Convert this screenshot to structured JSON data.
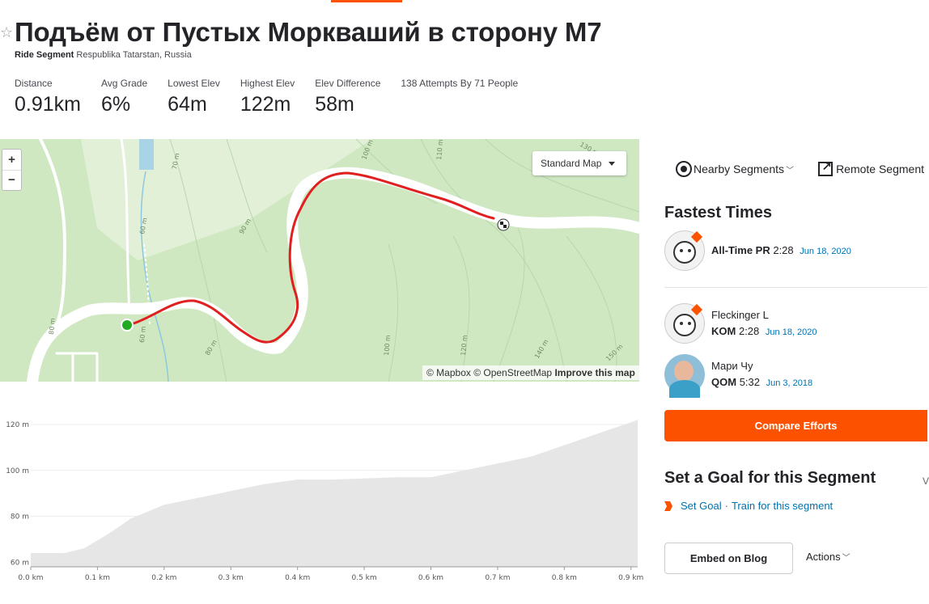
{
  "segment": {
    "title": "Подъём от Пустых Моркваший в сторону М7",
    "type_label": "Ride Segment",
    "location": "Respublika Tatarstan, Russia"
  },
  "stats": [
    {
      "label": "Distance",
      "value": "0.91km"
    },
    {
      "label": "Avg Grade",
      "value": "6%"
    },
    {
      "label": "Lowest Elev",
      "value": "64m"
    },
    {
      "label": "Highest Elev",
      "value": "122m"
    },
    {
      "label": "Elev Difference",
      "value": "58m"
    },
    {
      "label": "138 Attempts By 71 People",
      "value": ""
    }
  ],
  "map": {
    "zoom_in": "+",
    "zoom_out": "−",
    "map_type": "Standard Map",
    "attribution_1": "© Mapbox © OpenStreetMap",
    "attribution_2": "Improve this map",
    "contour_labels": [
      "70 m",
      "60 m",
      "90 m",
      "100 m",
      "110 m",
      "130 m",
      "80 m",
      "80 m",
      "60 m",
      "100 m",
      "120 m",
      "140 m",
      "150 m"
    ],
    "route_color": "#e02020",
    "start_color": "#22aa22"
  },
  "chart_data": {
    "type": "area",
    "title": "",
    "xlabel": "",
    "ylabel": "",
    "x_ticks": [
      "0.0 km",
      "0.1 km",
      "0.2 km",
      "0.3 km",
      "0.4 km",
      "0.5 km",
      "0.6 km",
      "0.7 km",
      "0.8 km",
      "0.9 km"
    ],
    "y_ticks": [
      "60 m",
      "80 m",
      "100 m",
      "120 m"
    ],
    "xlim": [
      0,
      0.91
    ],
    "ylim": [
      58,
      126
    ],
    "x": [
      0,
      0.05,
      0.08,
      0.12,
      0.15,
      0.2,
      0.25,
      0.3,
      0.35,
      0.4,
      0.45,
      0.5,
      0.55,
      0.6,
      0.65,
      0.7,
      0.75,
      0.8,
      0.85,
      0.91
    ],
    "values": [
      64,
      64,
      66,
      73,
      79,
      85,
      88,
      91,
      94,
      96,
      96,
      96.5,
      97,
      97,
      100,
      103,
      106,
      111,
      116,
      122
    ],
    "fill_color": "#e6e6e6"
  },
  "sidebar": {
    "nearby_label": "Nearby Segments",
    "remote_label": "Remote Segment",
    "fastest_title": "Fastest Times",
    "entries": [
      {
        "name": "",
        "label": "All-Time PR",
        "time": "2:28",
        "date": "Jun 18, 2020"
      },
      {
        "name": "Fleckinger L",
        "label": "KOM",
        "time": "2:28",
        "date": "Jun 18, 2020"
      },
      {
        "name": "Мари Чу",
        "label": "QOM",
        "time": "5:32",
        "date": "Jun 3, 2018"
      }
    ],
    "compare_label": "Compare Efforts",
    "goal_title": "Set a Goal for this Segment",
    "goal_more": "V",
    "set_goal": "Set Goal",
    "dot": "·",
    "train": "Train for this segment",
    "embed": "Embed on Blog",
    "actions": "Actions"
  },
  "colors": {
    "accent": "#fc5200",
    "link": "#0071b0"
  }
}
